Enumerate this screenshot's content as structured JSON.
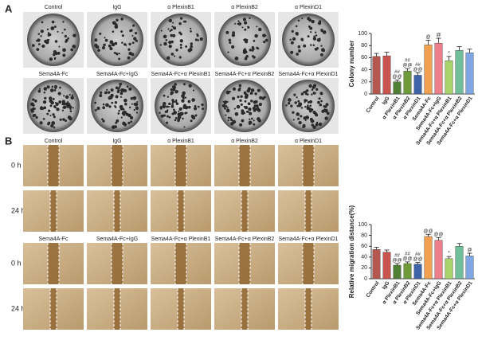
{
  "panel_a": {
    "label": "A",
    "top_labels": [
      "Control",
      "IgG",
      "α PlexinB1",
      "α PlexinB2",
      "α PlexinD1"
    ],
    "bottom_labels": [
      "Sema4A-Fc",
      "Sema4A-Fc+IgG",
      "Sema4A-Fc+α PlexinB1",
      "Sema4A-Fc+α PlexinB2",
      "Sema4A-Fc+α PlexinD1"
    ]
  },
  "panel_b": {
    "label": "B",
    "top_labels": [
      "Control",
      "IgG",
      "α PlexinB1",
      "α PlexinB2",
      "α PlexinD1"
    ],
    "bottom_labels": [
      "Sema4A-Fc",
      "Sema4A-Fc+IgG",
      "Sema4A-Fc+α PlexinB1",
      "Sema4A-Fc+α PlexinB2",
      "Sema4A-Fc+α PlexinD1"
    ],
    "row_labels": [
      "0 h",
      "24 h",
      "0 h",
      "24 h"
    ]
  },
  "chart_data": [
    {
      "type": "bar",
      "y_label": "Colony number",
      "categories": [
        "Control",
        "IgG",
        "α PlexinB1",
        "α PlexinB2",
        "α PlexinD1",
        "Sema4A-Fc",
        "Sema4A-Fc+IgG",
        "Sema4A-Fc+α PlexinB1",
        "Sema4A-Fc+α PlexinB2",
        "Sema4A-Fc+α PlexinD1"
      ],
      "values": [
        62,
        63,
        20,
        38,
        31,
        81,
        84,
        55,
        72,
        68
      ],
      "errors": [
        5,
        6,
        3,
        4,
        4,
        8,
        8,
        7,
        6,
        6
      ],
      "colors": [
        "#b5574f",
        "#c9544f",
        "#4f7f34",
        "#6e9a3a",
        "#3d63a8",
        "#f1a04f",
        "#ee7f8a",
        "#a8d46b",
        "#6fbf9a",
        "#7fa7e3"
      ],
      "markers": [
        null,
        null,
        [
          "##",
          "@@"
        ],
        [
          "##",
          "@@"
        ],
        [
          "##",
          "@@"
        ],
        [
          "@"
        ],
        [
          "@"
        ],
        [
          "*"
        ],
        null,
        null
      ],
      "ylim": [
        0,
        100
      ],
      "yticks": [
        0,
        20,
        40,
        60,
        80,
        100
      ]
    },
    {
      "type": "bar",
      "y_label": "Relative migration distance(%)",
      "categories": [
        "Control",
        "IgG",
        "α PlexinB1",
        "α PlexinB2",
        "α PlexinD1",
        "Sema4A-Fc",
        "Sema4A-Fc+IgG",
        "Sema4A-Fc+α PlexinB1",
        "Sema4A-Fc+α PlexinB2",
        "Sema4A-Fc+α PlexinD1"
      ],
      "values": [
        54,
        49,
        25,
        28,
        27,
        78,
        71,
        37,
        60,
        42
      ],
      "errors": [
        4,
        4,
        3,
        3,
        3,
        4,
        5,
        4,
        5,
        5
      ],
      "colors": [
        "#b5574f",
        "#c9544f",
        "#4f7f34",
        "#6e9a3a",
        "#3d63a8",
        "#f1a04f",
        "#ee7f8a",
        "#a8d46b",
        "#6fbf9a",
        "#7fa7e3"
      ],
      "markers": [
        null,
        null,
        [
          "##",
          "@@"
        ],
        [
          "##",
          "@@"
        ],
        [
          "##",
          "@@"
        ],
        [
          "@@"
        ],
        [
          "@@"
        ],
        [
          "*"
        ],
        null,
        [
          "@"
        ]
      ],
      "ylim": [
        0,
        100
      ],
      "yticks": [
        0,
        20,
        40,
        60,
        80,
        100
      ]
    }
  ]
}
